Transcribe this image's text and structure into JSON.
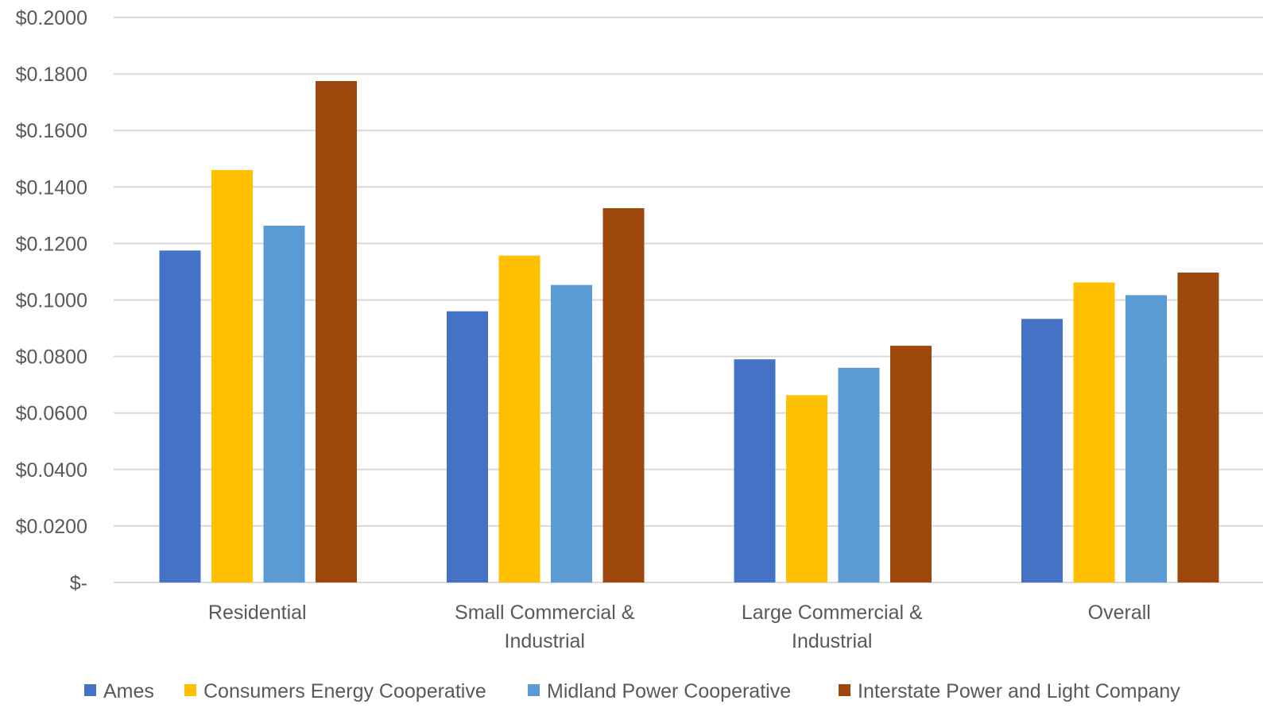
{
  "chart_data": {
    "type": "bar",
    "title": "",
    "xlabel": "",
    "ylabel": "",
    "categories": [
      [
        "Residential"
      ],
      [
        "Small Commercial &",
        "Industrial"
      ],
      [
        "Large Commercial &",
        "Industrial"
      ],
      [
        "Overall"
      ]
    ],
    "series": [
      {
        "name": "Ames",
        "color": "#4472C4",
        "values": [
          0.1175,
          0.096,
          0.079,
          0.0933
        ]
      },
      {
        "name": "Consumers Energy Cooperative",
        "color": "#FFC000",
        "values": [
          0.146,
          0.1157,
          0.0663,
          0.1062
        ]
      },
      {
        "name": "Midland Power Cooperative",
        "color": "#5B9BD5",
        "values": [
          0.1263,
          0.1053,
          0.076,
          0.1017
        ]
      },
      {
        "name": "Interstate Power and Light Company",
        "color": "#9E480E",
        "values": [
          0.1775,
          0.1325,
          0.0838,
          0.1097
        ]
      }
    ],
    "ylim": [
      0,
      0.2
    ],
    "yticks": [
      0,
      0.02,
      0.04,
      0.06,
      0.08,
      0.1,
      0.12,
      0.14,
      0.16,
      0.18,
      0.2
    ],
    "ytick_labels": [
      "$-",
      "$0.0200",
      "$0.0400",
      "$0.0600",
      "$0.0800",
      "$0.1000",
      "$0.1200",
      "$0.1400",
      "$0.1600",
      "$0.1800",
      "$0.2000"
    ],
    "grid": true,
    "legend_position": "bottom"
  }
}
